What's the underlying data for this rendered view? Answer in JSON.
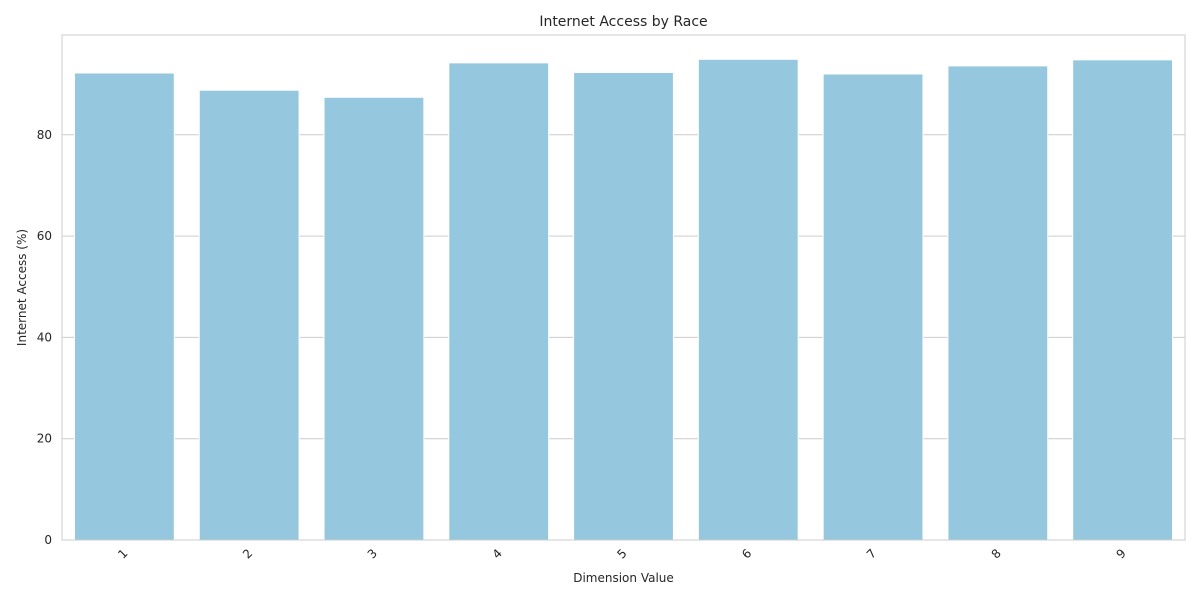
{
  "chart_data": {
    "type": "bar",
    "title": "Internet Access by Race",
    "xlabel": "Dimension Value",
    "ylabel": "Internet Access (%)",
    "categories": [
      "1",
      "2",
      "3",
      "4",
      "5",
      "6",
      "7",
      "8",
      "9"
    ],
    "values": [
      92.2,
      88.8,
      87.4,
      94.2,
      92.3,
      94.9,
      92.0,
      93.6,
      94.8
    ],
    "ylim": [
      0,
      99.7
    ],
    "yticks": [
      0,
      20,
      40,
      60,
      80
    ],
    "grid": true,
    "bar_color": "#95c8de",
    "bar_edge_color": "#ffffff"
  }
}
